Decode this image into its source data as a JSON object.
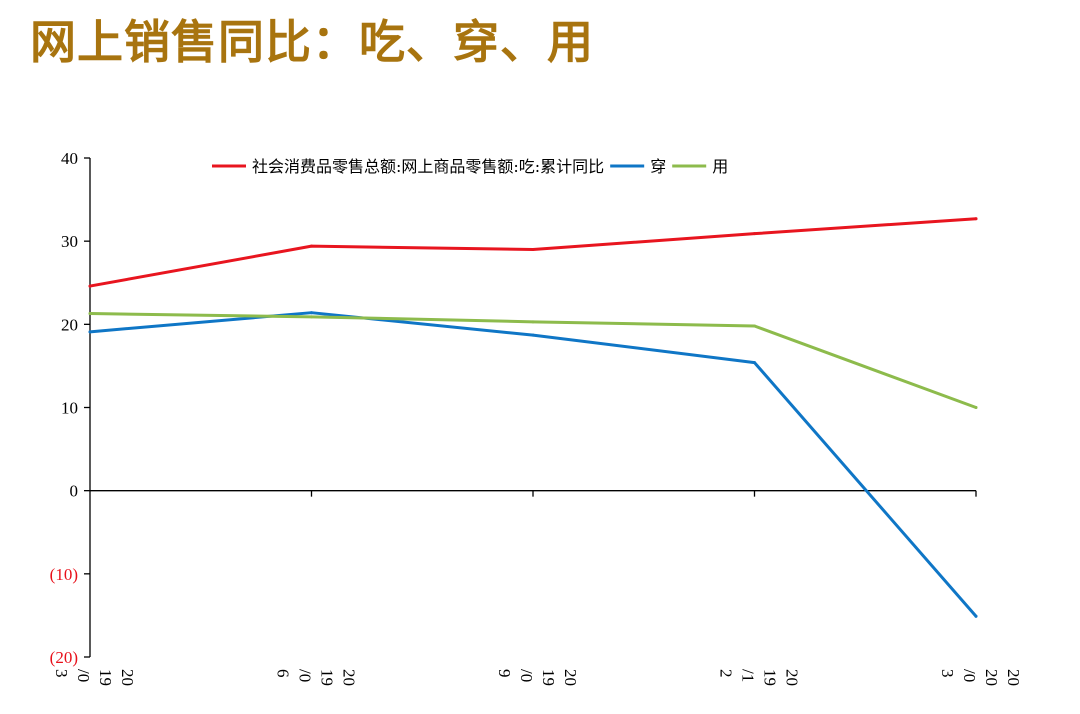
{
  "page": {
    "title": "网上销售同比：吃、穿、用"
  },
  "colors": {
    "title": "#a8740f",
    "negative_tick": "#e8101a"
  },
  "chart_data": {
    "type": "line",
    "title": "",
    "xlabel": "",
    "ylabel": "",
    "ylim": [
      -20,
      40
    ],
    "yticks": [
      40,
      30,
      20,
      10,
      0,
      -10,
      -20
    ],
    "ytick_labels": [
      "40",
      "30",
      "20",
      "10",
      "0",
      "(10)",
      "(20)"
    ],
    "negative_tick_color": "#e8101a",
    "grid": false,
    "legend_position": "top",
    "categories": [
      "2019/03",
      "2019/06",
      "2019/09",
      "2019/12",
      "2020/03"
    ],
    "category_label_lines": [
      [
        "20",
        "19",
        "/0",
        "3"
      ],
      [
        "20",
        "19",
        "/0",
        "6"
      ],
      [
        "20",
        "19",
        "/0",
        "9"
      ],
      [
        "20",
        "19",
        "/1",
        "2"
      ],
      [
        "20",
        "20",
        "/0",
        "3"
      ]
    ],
    "series": [
      {
        "name": "社会消费品零售总额:网上商品零售额:吃:累计同比",
        "color": "#e8151f",
        "values": [
          24.6,
          29.4,
          29.0,
          30.9,
          32.7
        ]
      },
      {
        "name": "穿",
        "color": "#0f76c6",
        "values": [
          19.1,
          21.4,
          18.7,
          15.4,
          -15.1
        ]
      },
      {
        "name": "用",
        "color": "#8dbb4c",
        "values": [
          21.3,
          20.9,
          20.3,
          19.8,
          10.0
        ]
      }
    ]
  }
}
